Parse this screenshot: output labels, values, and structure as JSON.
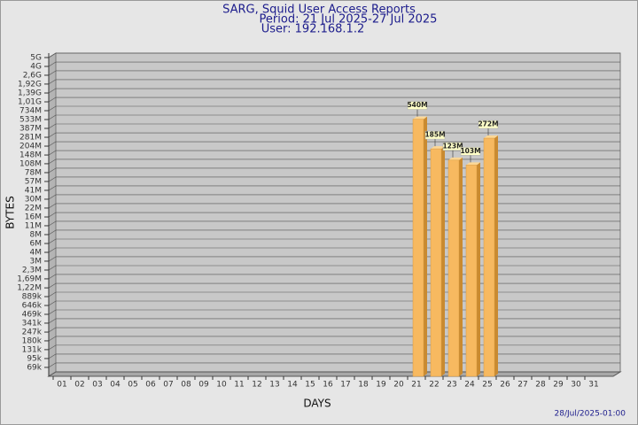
{
  "chart_data": {
    "type": "bar",
    "title": "SARG, Squid User Access Reports",
    "subtitle": [
      "Period: 21 Jul 2025-27 Jul 2025",
      "User: 192.168.1.2"
    ],
    "xlabel": "DAYS",
    "ylabel": "BYTES",
    "footer": "28/Jul/2025-01:00",
    "log_scale": true,
    "grid": true,
    "color": "#f7b960",
    "categories": [
      "01",
      "02",
      "03",
      "04",
      "05",
      "06",
      "07",
      "08",
      "09",
      "10",
      "11",
      "12",
      "13",
      "14",
      "15",
      "16",
      "17",
      "18",
      "19",
      "20",
      "21",
      "22",
      "23",
      "24",
      "25",
      "26",
      "27",
      "28",
      "29",
      "30",
      "31"
    ],
    "values": [
      null,
      null,
      null,
      null,
      null,
      null,
      null,
      null,
      null,
      null,
      null,
      null,
      null,
      null,
      null,
      null,
      null,
      null,
      null,
      null,
      540000000,
      185000000,
      123000000,
      103000000,
      272000000,
      null,
      null,
      null,
      null,
      null,
      null
    ],
    "value_labels": [
      null,
      null,
      null,
      null,
      null,
      null,
      null,
      null,
      null,
      null,
      null,
      null,
      null,
      null,
      null,
      null,
      null,
      null,
      null,
      null,
      "540M",
      "185M",
      "123M",
      "103M",
      "272M",
      null,
      null,
      null,
      null,
      null,
      null
    ],
    "ylim": [
      50000,
      5000000000
    ],
    "yticks": [
      {
        "value": 69000,
        "label": "69k"
      },
      {
        "value": 95000,
        "label": "95k"
      },
      {
        "value": 131000,
        "label": "131k"
      },
      {
        "value": 180000,
        "label": "180k"
      },
      {
        "value": 247000,
        "label": "247k"
      },
      {
        "value": 341000,
        "label": "341k"
      },
      {
        "value": 469000,
        "label": "469k"
      },
      {
        "value": 646000,
        "label": "646k"
      },
      {
        "value": 889000,
        "label": "889k"
      },
      {
        "value": 1220000,
        "label": "1,22M"
      },
      {
        "value": 1690000,
        "label": "1,69M"
      },
      {
        "value": 2320000,
        "label": "2,3M"
      },
      {
        "value": 3200000,
        "label": "3M"
      },
      {
        "value": 4400000,
        "label": "4M"
      },
      {
        "value": 6060000,
        "label": "6M"
      },
      {
        "value": 8350000,
        "label": "8M"
      },
      {
        "value": 11500000,
        "label": "11M"
      },
      {
        "value": 15800000,
        "label": "16M"
      },
      {
        "value": 21800000,
        "label": "22M"
      },
      {
        "value": 30000000,
        "label": "30M"
      },
      {
        "value": 41300000,
        "label": "41M"
      },
      {
        "value": 56900000,
        "label": "57M"
      },
      {
        "value": 78300000,
        "label": "78M"
      },
      {
        "value": 108000000,
        "label": "108M"
      },
      {
        "value": 148000000,
        "label": "148M"
      },
      {
        "value": 204000000,
        "label": "204M"
      },
      {
        "value": 281000000,
        "label": "281M"
      },
      {
        "value": 387000000,
        "label": "387M"
      },
      {
        "value": 533000000,
        "label": "533M"
      },
      {
        "value": 734000000,
        "label": "734M"
      },
      {
        "value": 1010000000,
        "label": "1,01G"
      },
      {
        "value": 1390000000,
        "label": "1,39G"
      },
      {
        "value": 1920000000,
        "label": "1,92G"
      },
      {
        "value": 2640000000,
        "label": "2,6G"
      },
      {
        "value": 3630000000,
        "label": "4G"
      },
      {
        "value": 5000000000,
        "label": "5G"
      }
    ]
  }
}
